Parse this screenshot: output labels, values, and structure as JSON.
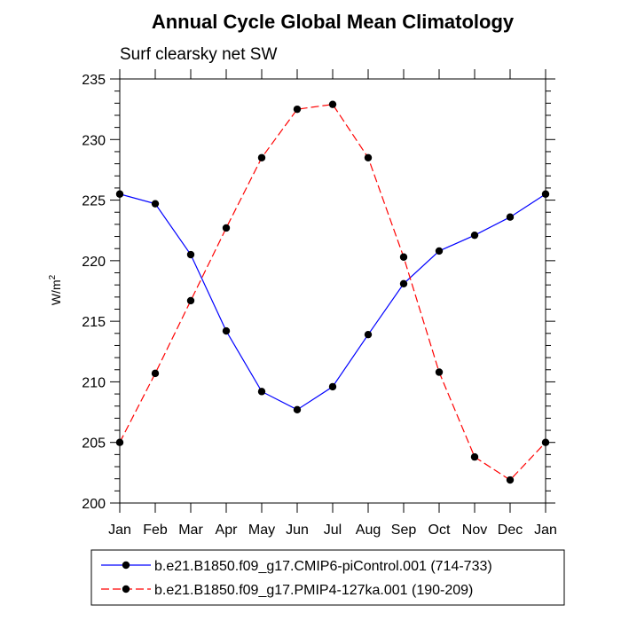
{
  "chart_data": {
    "type": "line",
    "title": "Annual Cycle Global Mean Climatology",
    "subtitle": "Surf clearsky net SW",
    "ylabel_base": "W/m",
    "ylabel_sup": "2",
    "xlabel": "",
    "categories": [
      "Jan",
      "Feb",
      "Mar",
      "Apr",
      "May",
      "Jun",
      "Jul",
      "Aug",
      "Sep",
      "Oct",
      "Nov",
      "Dec",
      "Jan"
    ],
    "ylim": [
      200,
      235
    ],
    "yticks": [
      200,
      205,
      210,
      215,
      220,
      225,
      230,
      235
    ],
    "series": [
      {
        "name": "b.e21.B1850.f09_g17.CMIP6-piControl.001 (714-733)",
        "color": "#0000ff",
        "dash": "solid",
        "values": [
          225.5,
          224.7,
          220.5,
          214.2,
          209.2,
          207.7,
          209.6,
          213.9,
          218.1,
          220.8,
          222.1,
          223.6,
          225.5
        ]
      },
      {
        "name": "b.e21.B1850.f09_g17.PMIP4-127ka.001 (190-209)",
        "color": "#ff0000",
        "dash": "dashed",
        "values": [
          205.0,
          210.7,
          216.7,
          222.7,
          228.5,
          232.5,
          232.9,
          228.5,
          220.3,
          210.8,
          203.8,
          201.9,
          205.0
        ]
      }
    ],
    "legend_position": "bottom"
  }
}
